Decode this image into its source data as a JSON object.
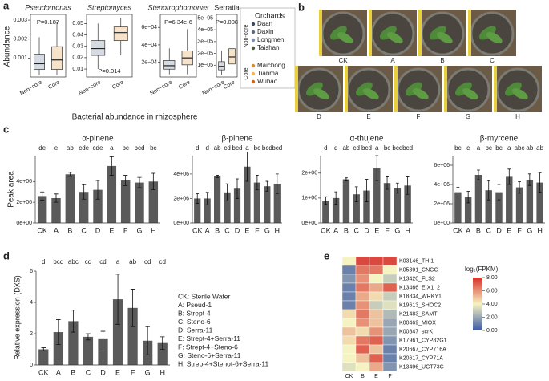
{
  "figure": {
    "panel_labels": [
      "a",
      "b",
      "c",
      "d",
      "e"
    ],
    "a_ylabel": "Abundance",
    "a_xlabel": "Bacterial abundance in rhizosphere",
    "c_ylabel": "Peak area"
  },
  "legend": {
    "title": "Orchards",
    "groups": [
      {
        "name": "Non-core",
        "items": [
          {
            "name": "Daan",
            "color": "#3b4a6b"
          },
          {
            "name": "Daxin",
            "color": "#5a6b8c"
          },
          {
            "name": "Longmen",
            "color": "#7d8db0"
          },
          {
            "name": "Taishan",
            "color": "#4d5d3f"
          }
        ]
      },
      {
        "name": "Core",
        "items": [
          {
            "name": "Maichong",
            "color": "#e08a2c"
          },
          {
            "name": "Tianma",
            "color": "#f2b84b"
          },
          {
            "name": "Wubao",
            "color": "#c96a1b"
          }
        ]
      }
    ]
  },
  "photos": {
    "labels": [
      "CK",
      "A",
      "B",
      "C",
      "D",
      "E",
      "F",
      "G",
      "H"
    ]
  },
  "chart_data": [
    {
      "type": "box",
      "title": "Pseudomonas",
      "italic": true,
      "categories": [
        "Non−core",
        "Core"
      ],
      "colors": [
        "#5a6b8c",
        "#e08a2c"
      ],
      "boxes": [
        {
          "low": 0.0001,
          "q1": 0.0004,
          "median": 0.0007,
          "q3": 0.0012,
          "high": 0.0021
        },
        {
          "low": 0.0001,
          "q1": 0.0004,
          "median": 0.0009,
          "q3": 0.0016,
          "high": 0.0029
        }
      ],
      "annotation": "P=0.187",
      "ylim": [
        0,
        0.0033
      ],
      "yticks": [
        0.001,
        0.002,
        0.003
      ]
    },
    {
      "type": "box",
      "title": "Streptomyces",
      "italic": true,
      "categories": [
        "Non−core",
        "Core"
      ],
      "colors": [
        "#5a6b8c",
        "#e08a2c"
      ],
      "boxes": [
        {
          "low": 0.01,
          "q1": 0.022,
          "median": 0.028,
          "q3": 0.035,
          "high": 0.05
        },
        {
          "low": 0.022,
          "q1": 0.035,
          "median": 0.042,
          "q3": 0.047,
          "high": 0.055
        }
      ],
      "annotation": "P=0.014",
      "ylim": [
        0.003,
        0.058
      ],
      "yticks": [
        0.01,
        0.02,
        0.03,
        0.04,
        0.05
      ]
    },
    {
      "type": "box",
      "title": "Stenotrophomonas",
      "italic": true,
      "categories": [
        "Non−core",
        "Core"
      ],
      "colors": [
        "#5a6b8c",
        "#e08a2c"
      ],
      "boxes": [
        {
          "low": 6e-05,
          "q1": 0.00012,
          "median": 0.00016,
          "q3": 0.00022,
          "high": 0.00036
        },
        {
          "low": 6e-05,
          "q1": 0.00017,
          "median": 0.00025,
          "q3": 0.00033,
          "high": 0.00058
        }
      ],
      "annotation": "P=6.34e-6",
      "ylim": [
        3e-05,
        0.00075
      ],
      "yticks": [
        {
          "value": 0.0002,
          "label": "2e−04"
        },
        {
          "value": 0.0004,
          "label": "4e−04"
        },
        {
          "value": 0.0006,
          "label": "6e−04"
        }
      ]
    },
    {
      "type": "box",
      "title": "Serratia",
      "italic": false,
      "categories": [
        "Non−core",
        "Core"
      ],
      "colors": [
        "#5a6b8c",
        "#e08a2c"
      ],
      "boxes": [
        {
          "low": 2e-06,
          "q1": 6e-06,
          "median": 9e-06,
          "q3": 1.3e-05,
          "high": 2.2e-05
        },
        {
          "low": 3e-06,
          "q1": 1.1e-05,
          "median": 1.7e-05,
          "q3": 2.4e-05,
          "high": 4.5e-05
        }
      ],
      "annotation": "P=0.008",
      "ylim": [
        0,
        5.3e-05
      ],
      "yticks": [
        {
          "value": 1e-05,
          "label": "1e−05"
        },
        {
          "value": 2e-05,
          "label": "2e−05"
        },
        {
          "value": 3e-05,
          "label": "3e−05"
        },
        {
          "value": 4e-05,
          "label": "4e−05"
        },
        {
          "value": 5e-05,
          "label": "5e−05"
        }
      ]
    },
    {
      "type": "bar",
      "title": "α-pinene",
      "categories": [
        "CK",
        "A",
        "B",
        "C",
        "D",
        "E",
        "F",
        "G",
        "H"
      ],
      "color": "#5a5a5a",
      "values": [
        2600000,
        2400000,
        4700000,
        3000000,
        3200000,
        5500000,
        4100000,
        3900000,
        4000000
      ],
      "errors": [
        400000,
        400000,
        200000,
        700000,
        900000,
        900000,
        500000,
        500000,
        800000
      ],
      "letters": [
        "de",
        "e",
        "ab",
        "cde",
        "cde",
        "a",
        "bc",
        "bcd",
        "bc"
      ],
      "ylim": [
        0,
        6500000
      ],
      "yticks": [
        {
          "value": 0,
          "label": "0e+00"
        },
        {
          "value": 2000000,
          "label": "2e+06"
        },
        {
          "value": 4000000,
          "label": "4e+06"
        }
      ]
    },
    {
      "type": "bar",
      "title": "β-pinene",
      "categories": [
        "CK",
        "A",
        "B",
        "C",
        "D",
        "E",
        "F",
        "G",
        "H"
      ],
      "color": "#5a5a5a",
      "values": [
        2000000,
        2000000,
        3800000,
        2500000,
        2800000,
        4600000,
        3300000,
        3000000,
        3200000
      ],
      "errors": [
        400000,
        500000,
        100000,
        700000,
        800000,
        1200000,
        600000,
        400000,
        800000
      ],
      "letters": [
        "d",
        "d",
        "ab",
        "cd",
        "bcd",
        "a",
        "bc",
        "bcd",
        "bcd"
      ],
      "ylim": [
        0,
        5500000
      ],
      "yticks": [
        {
          "value": 0,
          "label": "0e+00"
        },
        {
          "value": 2000000,
          "label": "2e+06"
        },
        {
          "value": 4000000,
          "label": "4e+06"
        }
      ]
    },
    {
      "type": "bar",
      "title": "α-thujene",
      "categories": [
        "CK",
        "A",
        "B",
        "C",
        "D",
        "E",
        "F",
        "G",
        "H"
      ],
      "color": "#5a5a5a",
      "values": [
        900000,
        1000000,
        1750000,
        1150000,
        1300000,
        2200000,
        1600000,
        1400000,
        1500000
      ],
      "errors": [
        150000,
        250000,
        60000,
        300000,
        450000,
        500000,
        250000,
        200000,
        350000
      ],
      "letters": [
        "d",
        "d",
        "ab",
        "cd",
        "bcd",
        "a",
        "bc",
        "bcd",
        "bcd"
      ],
      "ylim": [
        0,
        2700000
      ],
      "yticks": [
        {
          "value": 0,
          "label": "0e+00"
        },
        {
          "value": 1000000,
          "label": "1e+06"
        },
        {
          "value": 2000000,
          "label": "2e+06"
        }
      ]
    },
    {
      "type": "bar",
      "title": "β-myrcene",
      "categories": [
        "CK",
        "A",
        "B",
        "C",
        "D",
        "E",
        "F",
        "G",
        "H"
      ],
      "color": "#5a5a5a",
      "values": [
        3200000,
        2700000,
        5000000,
        3400000,
        3200000,
        4800000,
        3700000,
        4500000,
        4200000
      ],
      "errors": [
        500000,
        600000,
        500000,
        1000000,
        800000,
        800000,
        600000,
        600000,
        1000000
      ],
      "letters": [
        "bc",
        "c",
        "a",
        "bc",
        "bc",
        "a",
        "abc",
        "ab",
        "ab"
      ],
      "ylim": [
        0,
        7000000
      ],
      "yticks": [
        {
          "value": 0,
          "label": "0e+00"
        },
        {
          "value": 2000000,
          "label": "2e+06"
        },
        {
          "value": 4000000,
          "label": "4e+06"
        },
        {
          "value": 6000000,
          "label": "6e+06"
        }
      ]
    },
    {
      "type": "bar",
      "ylabel": "Relative expression (DXS)",
      "categories": [
        "CK",
        "A",
        "B",
        "C",
        "D",
        "E",
        "F",
        "G",
        "H"
      ],
      "color": "#5a5a5a",
      "values": [
        1.0,
        2.1,
        2.8,
        1.8,
        1.65,
        4.2,
        3.65,
        1.55,
        1.4
      ],
      "errors": [
        0.1,
        0.8,
        0.7,
        0.2,
        0.5,
        1.6,
        1.2,
        0.9,
        0.4
      ],
      "letters": [
        "d",
        "bcd",
        "abc",
        "cd",
        "cd",
        "a",
        "ab",
        "cd",
        "cd"
      ],
      "ylim": [
        0,
        6
      ],
      "yticks": [
        0,
        2,
        4,
        6
      ],
      "legend": [
        "CK: Sterile Water",
        "A: Pseud-1",
        "B: Strept-4",
        "C: Steno-6",
        "D: Serra-11",
        "E: Strept-4+Serra-11",
        "F: Strept-4+Steno-6",
        "G: Steno-6+Serra-11",
        "H: Strep-4+Stenot-6+Serra-11"
      ]
    },
    {
      "type": "heatmap",
      "columns": [
        "CK",
        "B",
        "E",
        "F"
      ],
      "rows": [
        "K03146_THI1",
        "K05391_CNGC",
        "K13420_FLS2",
        "K13466_EIX1_2",
        "K18834_WRKY1",
        "K19613_SHOC2",
        "K21483_SAMT",
        "K00469_MIOX",
        "K00847_scrK",
        "K17961_CYP82G1",
        "K20667_CYP716A",
        "K20617_CYP71A",
        "K13496_UGT73C"
      ],
      "values": [
        [
          4,
          7.5,
          7.5,
          7.5
        ],
        [
          1,
          6.5,
          6.5,
          4
        ],
        [
          1.5,
          6,
          4,
          3
        ],
        [
          1,
          6.5,
          5.5,
          7
        ],
        [
          1,
          5.5,
          4.5,
          3
        ],
        [
          1,
          6,
          3,
          3.5
        ],
        [
          4.5,
          6.5,
          5,
          2.5
        ],
        [
          4,
          6,
          5,
          2
        ],
        [
          5,
          4.5,
          6,
          2
        ],
        [
          4.5,
          6.5,
          7,
          1.5
        ],
        [
          4,
          7,
          5,
          1
        ],
        [
          4,
          5,
          7,
          1
        ],
        [
          3.5,
          4,
          5.5,
          1.5
        ]
      ],
      "colorbar": {
        "title": "log₂(FPKM)",
        "colors": [
          "#3b5ba5",
          "#f6f3c2",
          "#d7302a"
        ],
        "lim": [
          0,
          8
        ],
        "ticks": [
          {
            "value": 0,
            "label": "0.00"
          },
          {
            "value": 2,
            "label": "2.00"
          },
          {
            "value": 4,
            "label": "4.00"
          },
          {
            "value": 6,
            "label": "6.00"
          },
          {
            "value": 8,
            "label": "8.00"
          }
        ]
      }
    }
  ]
}
